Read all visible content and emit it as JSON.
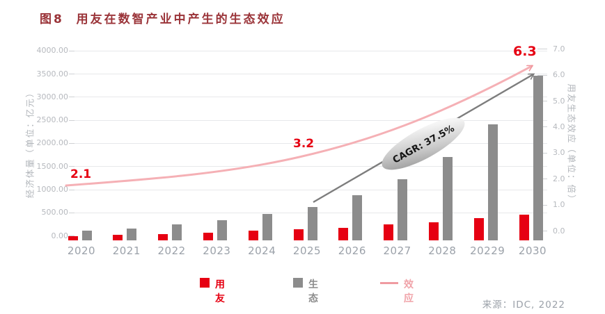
{
  "figure": {
    "title": "图8  用友在数智产业中产生的生态效应",
    "source": "来源：IDC, 2022"
  },
  "axes": {
    "left_title": "经济体量（单位：亿元）",
    "right_title": "用友生态效应（单位：倍）",
    "left_ticks": [
      "4000.00",
      "3500.00",
      "3000.00",
      "2500.00",
      "2000.00",
      "1500.00",
      "1000.00",
      "500.00",
      "0.00"
    ],
    "right_ticks": [
      "7.0",
      "6.0",
      "5.0",
      "4.0",
      "3.0",
      "2.0",
      "1.0",
      "0.0"
    ]
  },
  "legend": [
    {
      "label": "用友",
      "color": "#e60012",
      "swatch": "square"
    },
    {
      "label": "生态",
      "color": "#8c8c8c",
      "swatch": "square"
    },
    {
      "label": "效应",
      "color": "#f0a3a9",
      "swatch": "line"
    }
  ],
  "colors": {
    "yonyou_red": "#e60012",
    "eco_gray": "#8c8c8c",
    "effect_pink": "#f5b0b5",
    "arrow_gray": "#808080",
    "title_red": "#9a3338"
  },
  "chart_data": {
    "type": "bar",
    "subtype": "grouped bars with secondary-axis line",
    "categories": [
      "2020",
      "2021",
      "2022",
      "2023",
      "2024",
      "2025",
      "2026",
      "2027",
      "2028",
      "20229",
      "2030"
    ],
    "series": [
      {
        "name": "用友",
        "type": "bar",
        "axis": "left",
        "unit": "亿元",
        "color": "#e60012",
        "values": [
          90,
          115,
          140,
          170,
          205,
          235,
          270,
          350,
          395,
          475,
          560
        ]
      },
      {
        "name": "生态",
        "type": "bar",
        "axis": "left",
        "unit": "亿元",
        "color": "#8c8c8c",
        "values": [
          205,
          260,
          340,
          430,
          565,
          725,
          970,
          1320,
          1795,
          2510,
          3550
        ]
      },
      {
        "name": "效应",
        "type": "line",
        "axis": "right",
        "unit": "倍",
        "color": "#f5b0b5",
        "labeled_points": [
          {
            "year": "2020",
            "value": 2.1
          },
          {
            "year": "2025",
            "value": 3.2
          },
          {
            "year": "2030",
            "value": 6.3
          }
        ]
      }
    ],
    "annotations": [
      {
        "name": "cagr",
        "text": "CAGR:  37.5%"
      }
    ],
    "left_axis": {
      "label": "经济体量（单位：亿元）",
      "min": 0,
      "max": 4000,
      "step": 500
    },
    "right_axis": {
      "label": "用友生态效应（单位：倍）",
      "min": 0,
      "max": 7,
      "step": 1
    },
    "grid": "horizontal only",
    "legend_position": "bottom center"
  }
}
